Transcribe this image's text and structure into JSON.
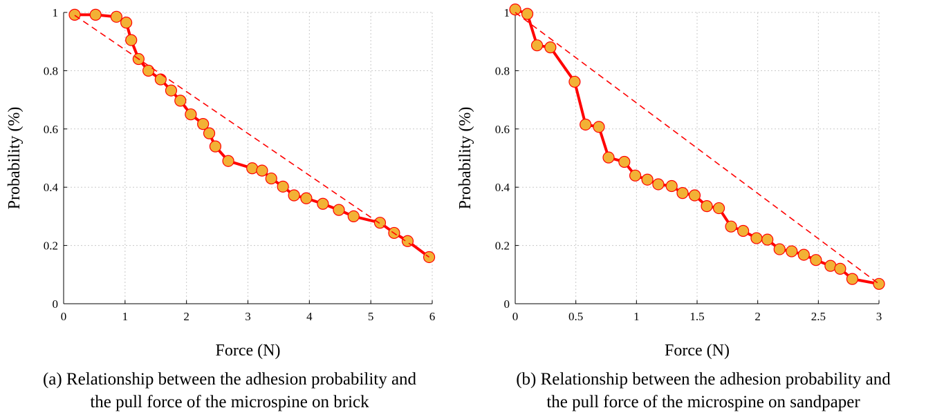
{
  "chart_data": [
    {
      "type": "line",
      "xlabel": "Force (N)",
      "ylabel": "Probability (%)",
      "xlim": [
        0,
        6
      ],
      "ylim": [
        0,
        1
      ],
      "xticks": [
        0,
        1,
        2,
        3,
        4,
        5,
        6
      ],
      "yticks": [
        0,
        0.2,
        0.4,
        0.6,
        0.8,
        1
      ],
      "xtick_labels": [
        "0",
        "1",
        "2",
        "3",
        "4",
        "5",
        "6"
      ],
      "ytick_labels": [
        "0",
        "0.2",
        "0.4",
        "0.6",
        "0.8",
        "1"
      ],
      "grid": true,
      "caption": [
        "(a) Relationship between the adhesion probability and",
        "the pull force of the microspine on brick"
      ],
      "series": [
        {
          "style": "solid-with-markers",
          "line_color": "#ff0000",
          "marker_fill": "#f2b135",
          "marker_edge": "#ff0000",
          "x": [
            0.18,
            0.52,
            0.86,
            1.02,
            1.1,
            1.22,
            1.38,
            1.58,
            1.75,
            1.9,
            2.07,
            2.27,
            2.37,
            2.47,
            2.68,
            3.07,
            3.23,
            3.38,
            3.57,
            3.75,
            3.95,
            4.22,
            4.48,
            4.72,
            5.15,
            5.38,
            5.6,
            5.95
          ],
          "y": [
            0.992,
            0.992,
            0.985,
            0.965,
            0.905,
            0.84,
            0.8,
            0.77,
            0.732,
            0.697,
            0.65,
            0.617,
            0.585,
            0.54,
            0.49,
            0.465,
            0.457,
            0.43,
            0.402,
            0.372,
            0.362,
            0.343,
            0.322,
            0.3,
            0.278,
            0.243,
            0.215,
            0.16
          ]
        },
        {
          "style": "dashed",
          "line_color": "#ff0000",
          "x": [
            0.18,
            5.95
          ],
          "y": [
            0.99,
            0.16
          ]
        }
      ]
    },
    {
      "type": "line",
      "xlabel": "Force (N)",
      "ylabel": "Probability (%)",
      "xlim": [
        0,
        3
      ],
      "ylim": [
        0,
        1
      ],
      "xticks": [
        0,
        0.5,
        1,
        1.5,
        2,
        2.5,
        3
      ],
      "yticks": [
        0,
        0.2,
        0.4,
        0.6,
        0.8,
        1
      ],
      "xtick_labels": [
        "0",
        "0.5",
        "1",
        "1.5",
        "2",
        "2.5",
        "3"
      ],
      "ytick_labels": [
        "0",
        "0.2",
        "0.4",
        "0.6",
        "0.8",
        "1"
      ],
      "grid": true,
      "caption": [
        "(b) Relationship between the adhesion probability and",
        "the pull force of the microspine on sandpaper"
      ],
      "series": [
        {
          "style": "solid-with-markers",
          "line_color": "#ff0000",
          "marker_fill": "#f2b135",
          "marker_edge": "#ff0000",
          "x": [
            0,
            0.1,
            0.18,
            0.29,
            0.49,
            0.58,
            0.69,
            0.77,
            0.9,
            0.99,
            1.09,
            1.18,
            1.29,
            1.38,
            1.48,
            1.58,
            1.68,
            1.78,
            1.88,
            1.99,
            2.08,
            2.18,
            2.28,
            2.38,
            2.48,
            2.6,
            2.68,
            2.78,
            3.0
          ],
          "y": [
            1.01,
            0.995,
            0.887,
            0.88,
            0.762,
            0.615,
            0.607,
            0.502,
            0.487,
            0.44,
            0.426,
            0.41,
            0.404,
            0.38,
            0.372,
            0.335,
            0.328,
            0.265,
            0.25,
            0.225,
            0.22,
            0.187,
            0.18,
            0.168,
            0.15,
            0.13,
            0.12,
            0.085,
            0.068
          ]
        },
        {
          "style": "dashed",
          "line_color": "#ff0000",
          "x": [
            0,
            3.0
          ],
          "y": [
            1.0,
            0.068
          ]
        }
      ]
    }
  ]
}
